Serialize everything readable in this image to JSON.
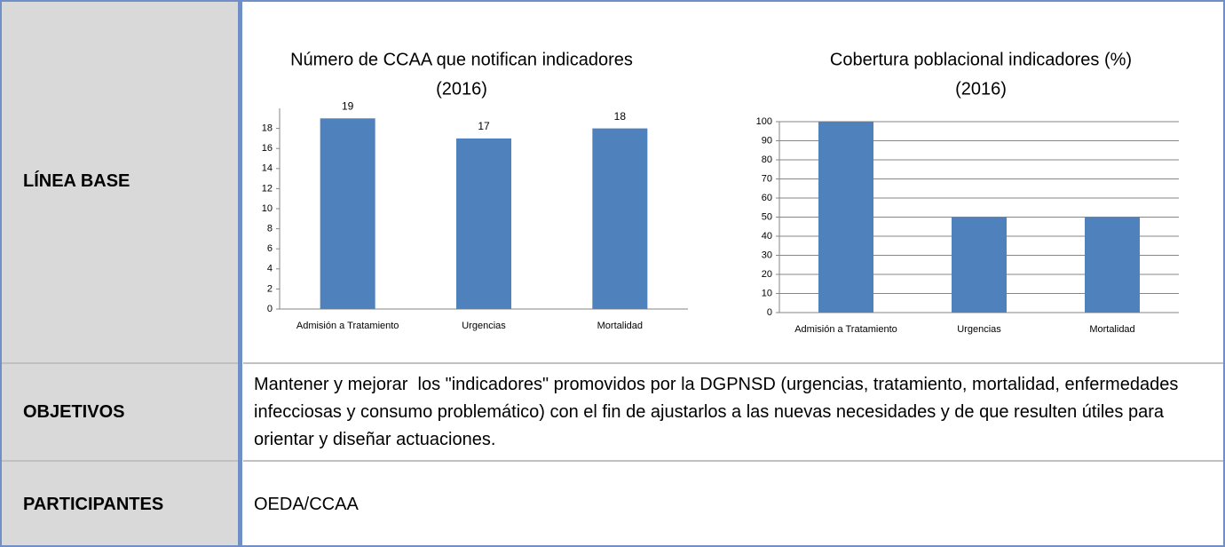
{
  "rows": [
    {
      "label": "LÍNEA BASE"
    },
    {
      "label": "OBJETIVOS",
      "text": "Mantener y mejorar  los \"indicadores\" promovidos por la DGPNSD (urgencias, tratamiento, mortalidad, enfermedades infecciosas y consumo problemático) con el fin de ajustarlos a las nuevas necesidades y de que resulten útiles para orientar y diseñar actuaciones."
    },
    {
      "label": "PARTICIPANTES",
      "text": "OEDA/CCAA"
    }
  ],
  "chart_data": [
    {
      "type": "bar",
      "title": "Número de CCAA que notifican indicadores",
      "subtitle": "(2016)",
      "categories": [
        "Admisión a Tratamiento",
        "Urgencias",
        "Mortalidad"
      ],
      "values": [
        19,
        17,
        18
      ],
      "color": "#4f81bd",
      "ylim": [
        0,
        20
      ],
      "yticks": [
        0,
        2,
        4,
        6,
        8,
        10,
        12,
        14,
        16,
        18
      ],
      "grid": false,
      "data_labels": true
    },
    {
      "type": "bar",
      "title": "Cobertura poblacional indicadores (%)",
      "subtitle": "(2016)",
      "categories": [
        "Admisión a Tratamiento",
        "Urgencias",
        "Mortalidad"
      ],
      "values": [
        100,
        50,
        50
      ],
      "color": "#4f81bd",
      "ylim": [
        0,
        100
      ],
      "yticks": [
        0,
        10,
        20,
        30,
        40,
        50,
        60,
        70,
        80,
        90,
        100
      ],
      "grid": true,
      "data_labels": false
    }
  ]
}
